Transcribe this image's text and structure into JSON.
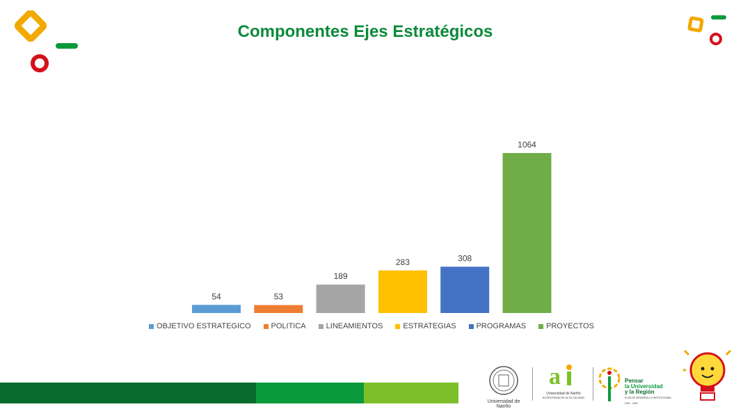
{
  "title": "Componentes Ejes Estratégicos",
  "colors": {
    "title": "#0b8a3a",
    "bar_dark": "#0b6b2e",
    "bar_mid": "#0a9a3c",
    "bar_light": "#7cbf2a"
  },
  "chart_data": {
    "type": "bar",
    "categories": [
      "OBJETIVO ESTRATEGICO",
      "POLITICA",
      "LINEAMIENTOS",
      "ESTRATEGIAS",
      "PROGRAMAS",
      "PROYECTOS"
    ],
    "values": [
      54,
      53,
      189,
      283,
      308,
      1064
    ],
    "colors": [
      "#5b9bd5",
      "#ed7d31",
      "#a5a5a5",
      "#ffc000",
      "#4472c4",
      "#70ad47"
    ],
    "ylim": [
      0,
      1064
    ],
    "grid": false,
    "legend": "bottom"
  },
  "logos": {
    "udenar_caption": "Universidad de Nariño",
    "ai_caption": "Universidad de Nariño",
    "ai_sub": "ACREDITADA DE ALTA CALIDAD",
    "plan_line1": "Pensar",
    "plan_line2": "la Universidad",
    "plan_line3": "y la Región",
    "plan_sub": "PLAN DE DESARROLLO INSTITUCIONAL",
    "plan_years": "2021 - 2032"
  }
}
